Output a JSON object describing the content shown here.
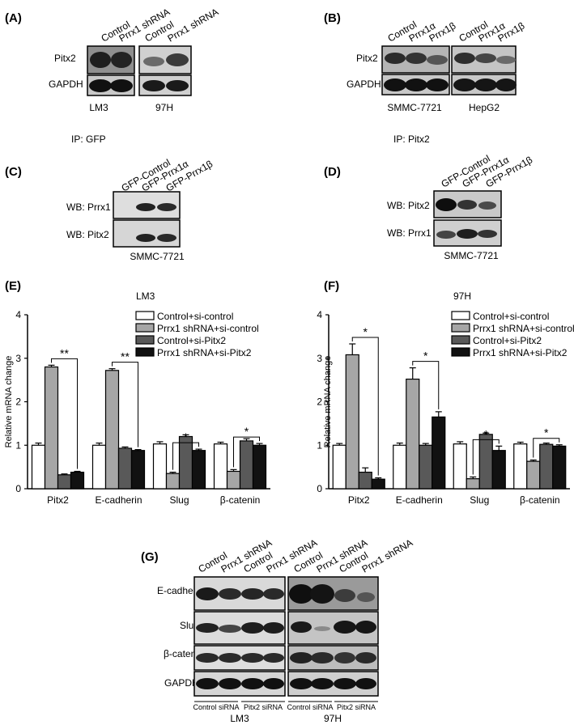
{
  "panelA": {
    "label": "(A)",
    "lanes": [
      "Control",
      "Prrx1 shRNA",
      "Control",
      "Prrx1 shRNA"
    ],
    "rows": [
      "Pitx2",
      "GAPDH"
    ],
    "groups": [
      "LM3",
      "97H"
    ]
  },
  "panelB": {
    "label": "(B)",
    "lanes": [
      "Control",
      "Prrx1α",
      "Prrx1β",
      "Control",
      "Prrx1α",
      "Prrx1β"
    ],
    "rows": [
      "Pitx2",
      "GAPDH"
    ],
    "groups": [
      "SMMC-7721",
      "HepG2"
    ]
  },
  "panelC": {
    "label": "(C)",
    "ip": "IP: GFP",
    "lanes": [
      "GFP-Control",
      "GFP-Prrx1α",
      "GFP-Prrx1β"
    ],
    "rows": [
      "WB: Prrx1",
      "WB: Pitx2"
    ],
    "cell": "SMMC-7721"
  },
  "panelD": {
    "label": "(D)",
    "ip": "IP: Pitx2",
    "lanes": [
      "GFP-Control",
      "GFP-Prrx1α",
      "GFP-Prrx1β"
    ],
    "rows": [
      "WB: Pitx2",
      "WB: Prrx1"
    ],
    "cell": "SMMC-7721"
  },
  "chart_data": [
    {
      "type": "bar",
      "panel": "(E)",
      "title": "LM3",
      "ylabel": "Relative mRNA change",
      "ylim": [
        0,
        4
      ],
      "yticks": [
        "0",
        "1",
        "2",
        "3",
        "4"
      ],
      "categories": [
        "Pitx2",
        "E-cadherin",
        "Slug",
        "β-catenin"
      ],
      "series": [
        {
          "name": "Control+si-control",
          "color": "#ffffff",
          "values": [
            1.0,
            1.0,
            1.03,
            1.03
          ],
          "errors": [
            0.05,
            0.05,
            0.05,
            0.04
          ]
        },
        {
          "name": "Prrx1 shRNA+si-control",
          "color": "#a6a6a6",
          "values": [
            2.8,
            2.72,
            0.35,
            0.4
          ],
          "errors": [
            0.04,
            0.04,
            0.03,
            0.04
          ]
        },
        {
          "name": "Control+si-Pitx2",
          "color": "#595959",
          "values": [
            0.32,
            0.93,
            1.2,
            1.1
          ],
          "errors": [
            0.02,
            0.03,
            0.04,
            0.05
          ]
        },
        {
          "name": "Prrx1 shRNA+si-Pitx2",
          "color": "#111111",
          "values": [
            0.38,
            0.88,
            0.88,
            1.0
          ],
          "errors": [
            0.02,
            0.02,
            0.03,
            0.04
          ]
        }
      ],
      "significance": [
        "**",
        "**",
        "*",
        "*"
      ]
    },
    {
      "type": "bar",
      "panel": "(F)",
      "title": "97H",
      "ylabel": "Relative mRNA change",
      "ylim": [
        0,
        4
      ],
      "yticks": [
        "0",
        "1",
        "2",
        "3",
        "4"
      ],
      "categories": [
        "Pitx2",
        "E-cadherin",
        "Slug",
        "β-catenin"
      ],
      "series": [
        {
          "name": "Control+si-control",
          "color": "#ffffff",
          "values": [
            1.0,
            1.0,
            1.03,
            1.03
          ],
          "errors": [
            0.04,
            0.05,
            0.05,
            0.04
          ]
        },
        {
          "name": "Prrx1 shRNA+si-control",
          "color": "#a6a6a6",
          "values": [
            3.08,
            2.52,
            0.23,
            0.63
          ],
          "errors": [
            0.25,
            0.26,
            0.04,
            0.03
          ]
        },
        {
          "name": "Control+si-Pitx2",
          "color": "#595959",
          "values": [
            0.38,
            1.0,
            1.25,
            1.02
          ],
          "errors": [
            0.1,
            0.04,
            0.03,
            0.03
          ]
        },
        {
          "name": "Prrx1 shRNA+si-Pitx2",
          "color": "#111111",
          "values": [
            0.22,
            1.65,
            0.88,
            0.98
          ],
          "errors": [
            0.03,
            0.12,
            0.1,
            0.03
          ]
        }
      ],
      "significance": [
        "*",
        "*",
        "*",
        "*"
      ]
    }
  ],
  "panelG": {
    "label": "(G)",
    "lanes": [
      "Control",
      "Prrx1 shRNA",
      "Control",
      "Prrx1 shRNA",
      "Control",
      "Prrx1 shRNA",
      "Control",
      "Prrx1 shRNA"
    ],
    "rows": [
      "E-cadherin",
      "Slug",
      "β-catenin",
      "GAPDH"
    ],
    "siRNA": [
      "Control siRNA",
      "Pitx2 siRNA",
      "Control siRNA",
      "Pitx2 siRNA"
    ],
    "groups": [
      "LM3",
      "97H"
    ]
  }
}
